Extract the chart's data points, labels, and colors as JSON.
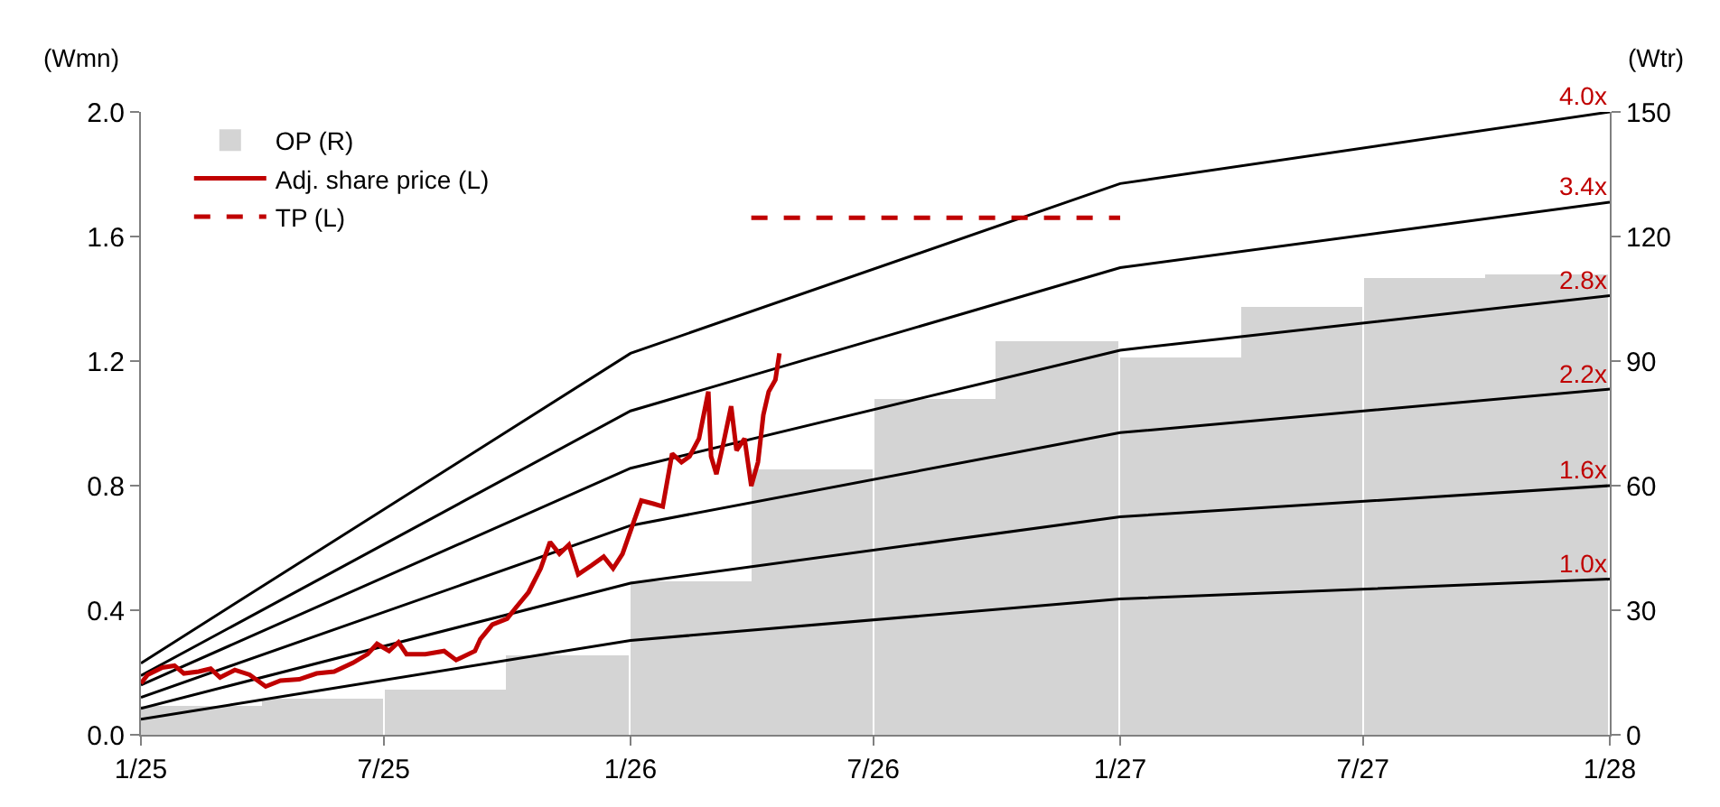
{
  "chart_data": {
    "type": "line",
    "ylabel": "(Wmn)",
    "y2label": "(Wtr)",
    "xlim": [
      "2025-01-01",
      "2028-01-01"
    ],
    "xticks": [
      {
        "value": "2025-01-01",
        "label": "1/25"
      },
      {
        "value": "2025-07-01",
        "label": "7/25"
      },
      {
        "value": "2026-01-01",
        "label": "1/26"
      },
      {
        "value": "2026-07-01",
        "label": "7/26"
      },
      {
        "value": "2027-01-01",
        "label": "1/27"
      },
      {
        "value": "2027-07-01",
        "label": "7/27"
      },
      {
        "value": "2028-01-01",
        "label": "1/28"
      }
    ],
    "ylim": [
      0,
      2.0
    ],
    "yticks": [
      {
        "value": 0,
        "label": "0.0"
      },
      0.4,
      0.8,
      1.2,
      1.6,
      {
        "value": 2,
        "label": "2.0"
      }
    ],
    "y2lim": [
      0,
      150
    ],
    "y2ticks": [
      0,
      30,
      60,
      90,
      120,
      150
    ],
    "legend": "top left",
    "annotations": [
      {
        "text": "4.0x",
        "x": "2028-01-01",
        "y": 2.0
      },
      {
        "text": "3.4x",
        "x": "2028-01-01",
        "y": 1.71
      },
      {
        "text": "2.8x",
        "x": "2028-01-01",
        "y": 1.41
      },
      {
        "text": "2.2x",
        "x": "2028-01-01",
        "y": 1.11
      },
      {
        "text": "1.6x",
        "x": "2028-01-01",
        "y": 0.8
      },
      {
        "text": "1.0x",
        "x": "2028-01-01",
        "y": 0.5
      }
    ],
    "series": [
      {
        "name": "OP (R)",
        "type": "bar",
        "axis": "y2",
        "color": "#d4d4d4",
        "x": [
          "2025-02-15",
          "2025-05-16",
          "2025-08-16",
          "2025-11-15",
          "2026-02-15",
          "2026-05-16",
          "2026-08-16",
          "2026-11-15",
          "2027-02-15",
          "2027-05-16",
          "2027-08-16",
          "2027-11-15"
        ],
        "values": [
          7,
          8.5,
          11,
          19,
          37,
          64,
          81,
          95,
          91,
          103,
          110,
          111
        ]
      },
      {
        "color": "#000000",
        "x": [
          "2025-01-01",
          "2026-01-01",
          "2027-01-01",
          "2028-01-01"
        ],
        "values": [
          0.23,
          1.225,
          1.77,
          2.0
        ]
      },
      {
        "color": "#000000",
        "x": [
          "2025-01-01",
          "2026-01-01",
          "2027-01-01",
          "2028-01-01"
        ],
        "values": [
          0.19,
          1.04,
          1.5,
          1.71
        ]
      },
      {
        "color": "#000000",
        "x": [
          "2025-01-01",
          "2026-01-01",
          "2027-01-01",
          "2028-01-01"
        ],
        "values": [
          0.16,
          0.856,
          1.235,
          1.41
        ]
      },
      {
        "color": "#000000",
        "x": [
          "2025-01-01",
          "2026-01-01",
          "2027-01-01",
          "2028-01-01"
        ],
        "values": [
          0.12,
          0.672,
          0.97,
          1.11
        ]
      },
      {
        "color": "#000000",
        "x": [
          "2025-01-01",
          "2026-01-01",
          "2027-01-01",
          "2028-01-01"
        ],
        "values": [
          0.085,
          0.487,
          0.7,
          0.8
        ]
      },
      {
        "color": "#000000",
        "x": [
          "2025-01-01",
          "2026-01-01",
          "2027-01-01",
          "2028-01-01"
        ],
        "values": [
          0.05,
          0.303,
          0.436,
          0.5
        ]
      },
      {
        "name": "Adj. share price (L)",
        "color": "#c00000",
        "line_style": "solid",
        "x": [
          "2025-01-01",
          "2025-01-06",
          "2025-01-17",
          "2025-01-26",
          "2025-02-02",
          "2025-02-13",
          "2025-02-22",
          "2025-03-01",
          "2025-03-12",
          "2025-03-23",
          "2025-04-04",
          "2025-04-15",
          "2025-04-29",
          "2025-05-12",
          "2025-05-25",
          "2025-06-08",
          "2025-06-19",
          "2025-06-26",
          "2025-07-05",
          "2025-07-12",
          "2025-07-18",
          "2025-08-01",
          "2025-08-15",
          "2025-08-24",
          "2025-09-07",
          "2025-09-11",
          "2025-09-20",
          "2025-10-01",
          "2025-10-08",
          "2025-10-17",
          "2025-10-26",
          "2025-11-02",
          "2025-11-09",
          "2025-11-16",
          "2025-11-23",
          "2025-12-03",
          "2025-12-12",
          "2025-12-19",
          "2025-12-26",
          "2026-01-02",
          "2026-01-09",
          "2026-01-18",
          "2026-01-25",
          "2026-02-01",
          "2026-02-08",
          "2026-02-14",
          "2026-02-21",
          "2026-02-28",
          "2026-03-02",
          "2026-03-06",
          "2026-03-11",
          "2026-03-17",
          "2026-03-21",
          "2026-03-27",
          "2026-04-01",
          "2026-04-06",
          "2026-04-10",
          "2026-04-14",
          "2026-04-19",
          "2026-04-22"
        ],
        "values": [
          0.165,
          0.193,
          0.216,
          0.222,
          0.197,
          0.203,
          0.212,
          0.184,
          0.208,
          0.193,
          0.155,
          0.174,
          0.178,
          0.197,
          0.203,
          0.231,
          0.259,
          0.292,
          0.269,
          0.297,
          0.259,
          0.259,
          0.269,
          0.24,
          0.269,
          0.307,
          0.354,
          0.373,
          0.411,
          0.458,
          0.534,
          0.619,
          0.581,
          0.61,
          0.515,
          0.544,
          0.572,
          0.534,
          0.581,
          0.667,
          0.752,
          0.742,
          0.733,
          0.903,
          0.875,
          0.894,
          0.951,
          1.102,
          0.894,
          0.837,
          0.932,
          1.055,
          0.913,
          0.951,
          0.799,
          0.875,
          1.027,
          1.102,
          1.14,
          1.225
        ]
      },
      {
        "name": "TP (L)",
        "color": "#c00000",
        "line_style": "dashed",
        "x": [
          "2026-04-01",
          "2027-01-01"
        ],
        "values": [
          1.66,
          1.66
        ]
      }
    ]
  }
}
